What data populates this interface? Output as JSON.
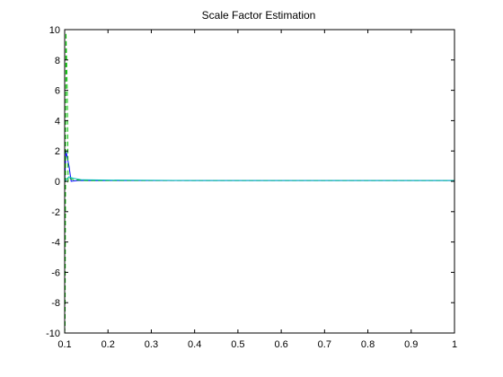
{
  "chart_data": {
    "type": "line",
    "title": "Scale Factor Estimation",
    "xlabel": "",
    "ylabel": "",
    "xlim": [
      0.1,
      1
    ],
    "ylim": [
      -10,
      10
    ],
    "xticks": [
      "0.1",
      "0.2",
      "0.3",
      "0.4",
      "0.5",
      "0.6",
      "0.7",
      "0.8",
      "0.9",
      "1"
    ],
    "yticks": [
      "-10",
      "-8",
      "-6",
      "-4",
      "-2",
      "0",
      "2",
      "4",
      "6",
      "8",
      "10"
    ],
    "grid": false,
    "legend": "none",
    "series": [
      {
        "color": "#0000ff",
        "style": "solid",
        "x": [
          0.1,
          0.103,
          0.11,
          0.115,
          0.13,
          0.2,
          0.4,
          0.6,
          0.8,
          1.0
        ],
        "y": [
          0,
          2.0,
          1.0,
          0,
          0.05,
          0.05,
          0.05,
          0.05,
          0.05,
          0.05
        ]
      },
      {
        "color": "#00bb00",
        "style": "dashed",
        "x": [
          0.1,
          0.101,
          0.103,
          0.106,
          0.108,
          0.112,
          0.12,
          0.15,
          0.3,
          0.5,
          0.7,
          0.9,
          1.0
        ],
        "y": [
          -10,
          -9.5,
          9.8,
          6,
          0,
          0.2,
          0.1,
          0.05,
          0.05,
          0.05,
          0.05,
          0.05,
          0.05
        ]
      },
      {
        "color": "#00bbbb",
        "style": "solid",
        "x": [
          0.1,
          0.11,
          0.12,
          0.14,
          0.2,
          0.4,
          0.6,
          0.8,
          1.0
        ],
        "y": [
          0,
          0.3,
          0.2,
          0.1,
          0.08,
          0.05,
          0.05,
          0.05,
          0.05
        ]
      }
    ]
  }
}
